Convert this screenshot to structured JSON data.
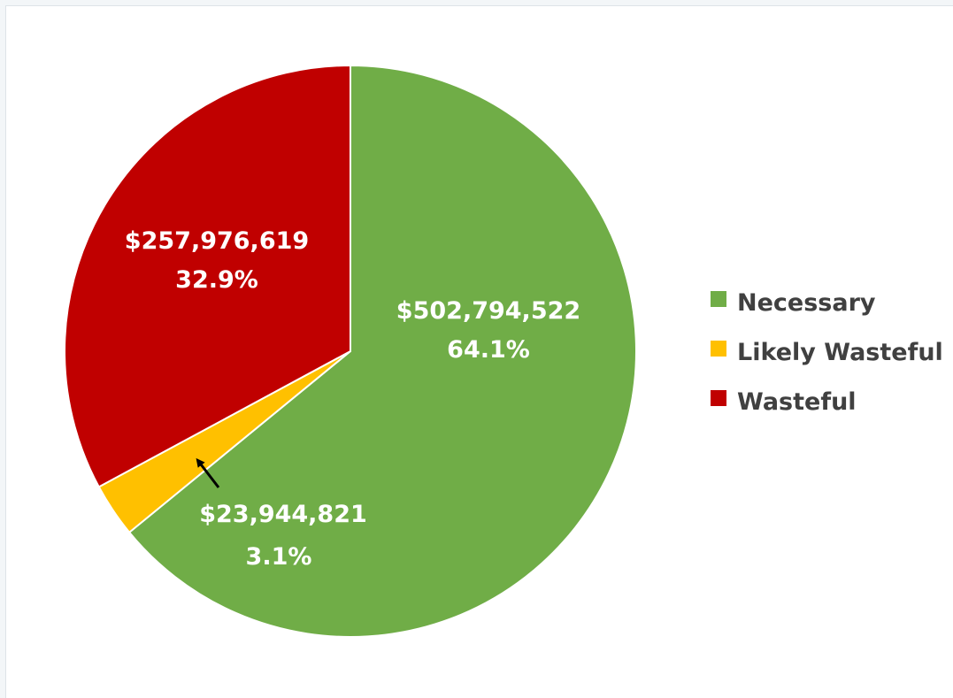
{
  "chart_data": {
    "type": "pie",
    "title": "",
    "series": [
      {
        "values": [
          502794522,
          23944821,
          257976619
        ],
        "colors": [
          "#70ad47",
          "#ffc000",
          "#c00000"
        ]
      }
    ],
    "categories": [
      "Necessary",
      "Likely Wasteful",
      "Wasteful"
    ],
    "slices": [
      {
        "label": "Necessary",
        "value": 502794522,
        "value_text": "$502,794,522",
        "percent_text": "64.1%",
        "color": "#70ad47"
      },
      {
        "label": "Likely Wasteful",
        "value": 23944821,
        "value_text": "$23,944,821",
        "percent_text": "3.1%",
        "color": "#ffc000"
      },
      {
        "label": "Wasteful",
        "value": 257976619,
        "value_text": "$257,976,619",
        "percent_text": "32.9%",
        "color": "#c00000"
      }
    ],
    "legend": {
      "position": "right",
      "entries": [
        "Necessary",
        "Likely Wasteful",
        "Wasteful"
      ]
    },
    "start_direction": "12 o'clock, clockwise",
    "annotations": [
      "arrow pointing from the $23,944,821 label to the Likely Wasteful slice"
    ]
  }
}
